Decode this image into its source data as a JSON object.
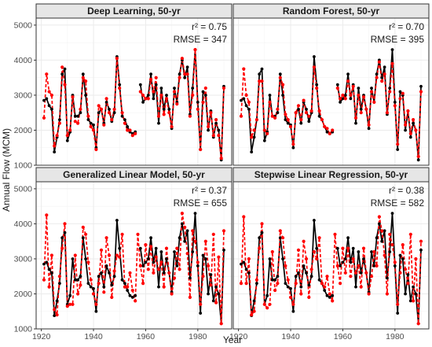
{
  "chart_data": {
    "type": "line",
    "layout": "facet-grid-2x2",
    "xlabel": "Year",
    "ylabel": "Annual Flow (MCM)",
    "xlim": [
      1918,
      1993
    ],
    "ylim": [
      1000,
      5200
    ],
    "x_ticks": [
      1920,
      1940,
      1960,
      1980
    ],
    "y_ticks": [
      1000,
      2000,
      3000,
      4000,
      5000
    ],
    "grid": true,
    "colors": {
      "observed": "#000000",
      "predicted": "#ff0000",
      "strip": "#e6e6e6",
      "grid": "#ebebeb"
    },
    "observed": {
      "years": [
        1921,
        1922,
        1923,
        1924,
        1925,
        1926,
        1927,
        1928,
        1929,
        1930,
        1931,
        1932,
        1933,
        1934,
        1935,
        1936,
        1937,
        1938,
        1939,
        1940,
        1941,
        1942,
        1943,
        1944,
        1945,
        1946,
        1947,
        1948,
        1949,
        1950,
        1951,
        1952,
        1953,
        1954,
        1955,
        1956,
        1957,
        1958,
        1959,
        1960,
        1961,
        1962,
        1963,
        1964,
        1965,
        1966,
        1967,
        1968,
        1969,
        1970,
        1971,
        1972,
        1973,
        1974,
        1975,
        1976,
        1977,
        1978,
        1979,
        1980,
        1981,
        1982,
        1983,
        1984,
        1985,
        1986,
        1987,
        1988,
        1989,
        1990
      ],
      "values": [
        2850,
        2900,
        2700,
        2600,
        1380,
        1800,
        2300,
        3600,
        3750,
        1700,
        1950,
        3000,
        2400,
        2400,
        2500,
        3600,
        3000,
        2300,
        2200,
        2150,
        1500,
        2500,
        2600,
        2200,
        2800,
        2600,
        2250,
        2500,
        4100,
        3300,
        2400,
        2300,
        2100,
        1950,
        1900,
        1950,
        null,
        3300,
        2800,
        2900,
        3000,
        3600,
        2900,
        3300,
        2200,
        3200,
        2600,
        3000,
        2600,
        2050,
        3200,
        2800,
        3600,
        4000,
        3500,
        3800,
        2450,
        3200,
        4300,
        2800,
        1450,
        3100,
        3000,
        2000,
        2550,
        1800,
        2200,
        2000,
        1150,
        3250
      ]
    },
    "panels": [
      {
        "title": "Deep Learning, 50-yr",
        "r2": "r² = 0.75",
        "rmse": "RMSE = 347",
        "predicted": [
          2350,
          3600,
          3100,
          3000,
          1550,
          1850,
          2200,
          3800,
          3300,
          1850,
          2000,
          2950,
          2250,
          2200,
          2600,
          3500,
          3400,
          2400,
          2100,
          2000,
          1450,
          2700,
          2600,
          2150,
          2900,
          2500,
          2300,
          2600,
          4050,
          3200,
          2500,
          2200,
          2000,
          2000,
          1850,
          1900,
          null,
          3100,
          3000,
          2900,
          2900,
          3450,
          3100,
          3500,
          2400,
          3000,
          2450,
          2900,
          2500,
          2100,
          3100,
          2750,
          3500,
          4050,
          3600,
          3600,
          2400,
          3000,
          4300,
          2600,
          1450,
          2800,
          3200,
          2100,
          2500,
          1850,
          2300,
          1850,
          1200,
          3200
        ]
      },
      {
        "title": "Random Forest, 50-yr",
        "r2": "r² = 0.70",
        "rmse": "RMSE = 395",
        "predicted": [
          2400,
          3750,
          3000,
          2800,
          1800,
          2000,
          2300,
          3400,
          3400,
          2000,
          1900,
          2800,
          2400,
          2350,
          2600,
          3500,
          3300,
          2450,
          2300,
          2100,
          1600,
          2500,
          2700,
          2300,
          2850,
          2500,
          2400,
          2550,
          3800,
          3200,
          2550,
          2300,
          2100,
          2050,
          1900,
          2000,
          null,
          3200,
          2900,
          3000,
          2900,
          3400,
          3000,
          3250,
          2350,
          3000,
          2500,
          2950,
          2600,
          2150,
          3100,
          2800,
          3500,
          3950,
          3400,
          3600,
          2500,
          3100,
          3900,
          2700,
          1600,
          2900,
          3050,
          2150,
          2550,
          1900,
          2300,
          2000,
          1250,
          3100
        ]
      },
      {
        "title": "Generalized Linear Model, 50-yr",
        "r2": "r² = 0.37",
        "rmse": "RMSE = 655",
        "predicted": [
          2400,
          4250,
          2200,
          3100,
          1550,
          1400,
          2500,
          3300,
          4000,
          1650,
          1700,
          1700,
          3100,
          2000,
          2250,
          3900,
          3700,
          2900,
          2400,
          2000,
          1700,
          2300,
          3250,
          2050,
          3600,
          3100,
          1900,
          2650,
          3100,
          3050,
          3700,
          2200,
          2200,
          2600,
          2100,
          1800,
          3700,
          2800,
          2300,
          3400,
          2700,
          3350,
          2600,
          3050,
          2700,
          2900,
          2200,
          3300,
          2600,
          2000,
          2450,
          3300,
          2700,
          4300,
          3900,
          3150,
          1900,
          3800,
          3500,
          2900,
          1700,
          2500,
          3500,
          2800,
          2250,
          3700,
          1750,
          3050,
          1150,
          3800
        ]
      },
      {
        "title": "Stepwise Linear Regression, 50-yr",
        "r2": "r² = 0.38",
        "rmse": "RMSE = 582",
        "predicted": [
          2300,
          4200,
          2300,
          3000,
          1400,
          1500,
          2400,
          3300,
          4000,
          1700,
          1600,
          1700,
          3200,
          2100,
          2300,
          3800,
          3600,
          2800,
          2400,
          1900,
          1700,
          2300,
          3250,
          2000,
          3500,
          3000,
          1900,
          2700,
          3200,
          3000,
          3600,
          2300,
          2200,
          2500,
          2000,
          1800,
          3700,
          2800,
          2300,
          3300,
          2600,
          3300,
          2500,
          3000,
          2600,
          2800,
          2200,
          3300,
          2600,
          2000,
          2500,
          3200,
          2800,
          4200,
          3800,
          3100,
          2000,
          3700,
          3400,
          2900,
          1700,
          2600,
          3400,
          2700,
          2300,
          3700,
          1800,
          3000,
          1150,
          3500
        ]
      }
    ]
  }
}
